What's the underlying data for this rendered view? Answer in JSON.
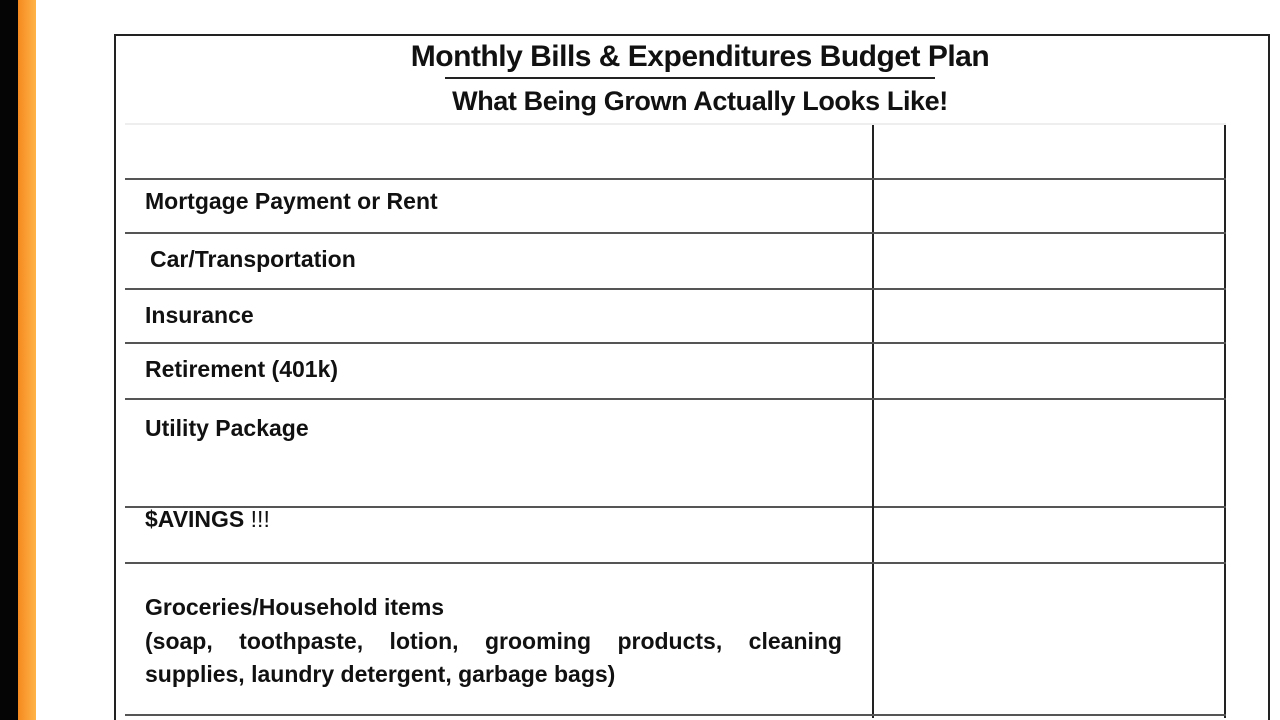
{
  "document": {
    "title": "Monthly Bills & Expenditures Budget Plan",
    "subtitle": "What Being Grown Actually Looks Like!"
  },
  "rows": [
    {
      "label": ""
    },
    {
      "label": "Mortgage Payment or Rent"
    },
    {
      "label": "Car/Transportation"
    },
    {
      "label": "Insurance"
    },
    {
      "label": "Retirement (401k)"
    },
    {
      "label": "Utility Package"
    },
    {
      "label": "$AVINGS",
      "suffix": "!!!"
    },
    {
      "label": "Groceries/Household items",
      "detail": "(soap, toothpaste, lotion, grooming products, cleaning supplies, laundry detergent, garbage bags)"
    }
  ],
  "colors": {
    "left_edge": "#050505",
    "accent_bar": "#f58a1f"
  }
}
